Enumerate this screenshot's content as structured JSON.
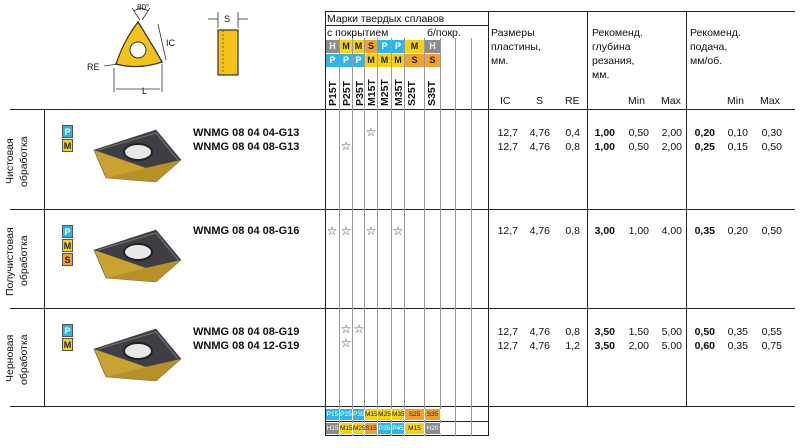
{
  "header": {
    "grades_title": "Марки твердых сплавов",
    "coated": "с покрытием",
    "uncoated": "б/покр.",
    "size_title_1": "Размеры",
    "size_title_2": "пластины,",
    "size_title_3": "мм.",
    "depth_title_1": "Рекоменд.",
    "depth_title_2": "глубина",
    "depth_title_3": "резания,",
    "depth_title_4": "мм.",
    "feed_title_1": "Рекоменд.",
    "feed_title_2": "подача,",
    "feed_title_3": "мм/об.",
    "col_ic": "IC",
    "col_s": "S",
    "col_re": "RE",
    "col_min": "Min",
    "col_max": "Max",
    "col_min2": "Min",
    "col_max2": "Max",
    "drawing_angle": "80°",
    "drawing_ic": "IC",
    "drawing_re": "RE",
    "drawing_l": "L",
    "drawing_s": "S"
  },
  "iso_row1": [
    "H",
    "M",
    "M",
    "S",
    "P",
    "P",
    "M",
    "H"
  ],
  "iso_row2": [
    "P",
    "P",
    "P",
    "M",
    "M",
    "M",
    "S",
    "S"
  ],
  "grades": [
    "P15T",
    "P25T",
    "P35T",
    "M15T",
    "M25T",
    "M35T",
    "S25T",
    "S35T"
  ],
  "sections": [
    {
      "label_1": "Чистовая",
      "label_2": "обработка",
      "badges": [
        "P",
        "M"
      ]
    },
    {
      "label_1": "Получистовая",
      "label_2": "обработка",
      "badges": [
        "P",
        "M",
        "S"
      ]
    },
    {
      "label_1": "Черновая",
      "label_2": "обработка",
      "badges": [
        "P",
        "M"
      ]
    }
  ],
  "rows": [
    {
      "name": "WNMG 08 04 04-G13",
      "ic": "12,7",
      "s": "4,76",
      "re": "0,4",
      "d_rec": "1,00",
      "d_min": "0,50",
      "d_max": "2,00",
      "f_rec": "0,20",
      "f_min": "0,10",
      "f_max": "0,30"
    },
    {
      "name": "WNMG 08 04 08-G13",
      "ic": "12,7",
      "s": "4,76",
      "re": "0,8",
      "d_rec": "1,00",
      "d_min": "0,50",
      "d_max": "2,00",
      "f_rec": "0,25",
      "f_min": "0,15",
      "f_max": "0,50"
    },
    {
      "name": "WNMG 08 04 08-G16",
      "ic": "12,7",
      "s": "4,76",
      "re": "0,8",
      "d_rec": "3,00",
      "d_min": "1,00",
      "d_max": "4,00",
      "f_rec": "0,35",
      "f_min": "0,20",
      "f_max": "0,50"
    },
    {
      "name": "WNMG 08 04 08-G19",
      "ic": "12,7",
      "s": "4,76",
      "re": "0,8",
      "d_rec": "3,50",
      "d_min": "1,50",
      "d_max": "5,00",
      "f_rec": "0,50",
      "f_min": "0,35",
      "f_max": "0,55"
    },
    {
      "name": "WNMG 08 04 12-G19",
      "ic": "12,7",
      "s": "4,76",
      "re": "1,2",
      "d_rec": "3,50",
      "d_min": "2,00",
      "d_max": "5,00",
      "f_rec": "0,60",
      "f_min": "0,35",
      "f_max": "0,75"
    }
  ],
  "star_symbol": "☆",
  "footer_row1": [
    "P15",
    "P25",
    "P35",
    "M15",
    "M25",
    "M35",
    "S25",
    "S35"
  ],
  "footer_row2": [
    "H15",
    "M15",
    "M25",
    "S15",
    "P35",
    "P45",
    "M15",
    "H20"
  ],
  "colors": {
    "gray": "#8c8c8c",
    "yellow": "#f5d21a",
    "blue": "#33b3e6",
    "orange": "#f3a12e"
  }
}
